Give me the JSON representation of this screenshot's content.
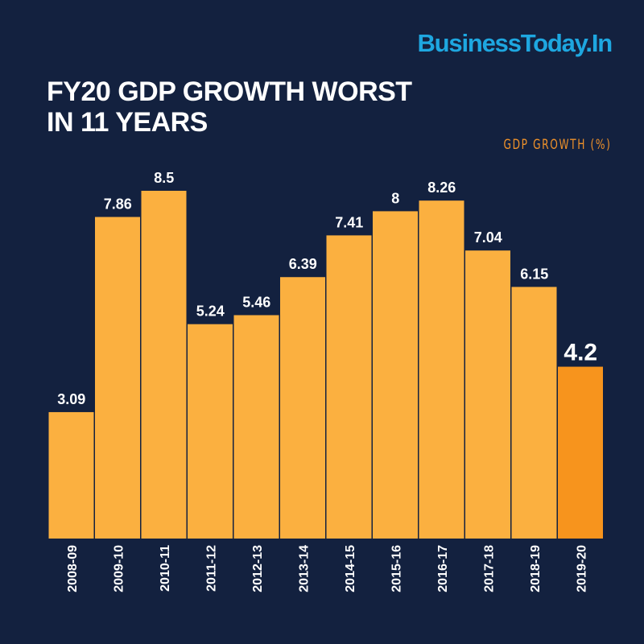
{
  "brand": "BusinessToday.In",
  "title_lines": [
    "FY20 GDP GROWTH WORST",
    "IN 11 YEARS"
  ],
  "chart_data": {
    "type": "bar",
    "title": "FY20 GDP GROWTH WORST IN 11 YEARS",
    "ylabel": "GDP GROWTH (%)",
    "categories": [
      "2008-09",
      "2009-10",
      "2010-11",
      "2011-12",
      "2012-13",
      "2013-14",
      "2014-15",
      "2015-16",
      "2016-17",
      "2017-18",
      "2018-19",
      "2019-20"
    ],
    "values": [
      3.09,
      7.86,
      8.5,
      5.24,
      5.46,
      6.39,
      7.41,
      8,
      8.26,
      7.04,
      6.15,
      4.2
    ],
    "data_labels": [
      "3.09",
      "7.86",
      "8.5",
      "5.24",
      "5.46",
      "6.39",
      "7.41",
      "8",
      "8.26",
      "7.04",
      "6.15",
      "4.2"
    ],
    "highlight_index": 11,
    "ylim": [
      0,
      8.5
    ],
    "grid": false,
    "colors": {
      "bar": "#fbb040",
      "highlight": "#f7941d",
      "background": "#13213f",
      "brand": "#1ea7e0",
      "unit_label": "#f0922a"
    }
  }
}
